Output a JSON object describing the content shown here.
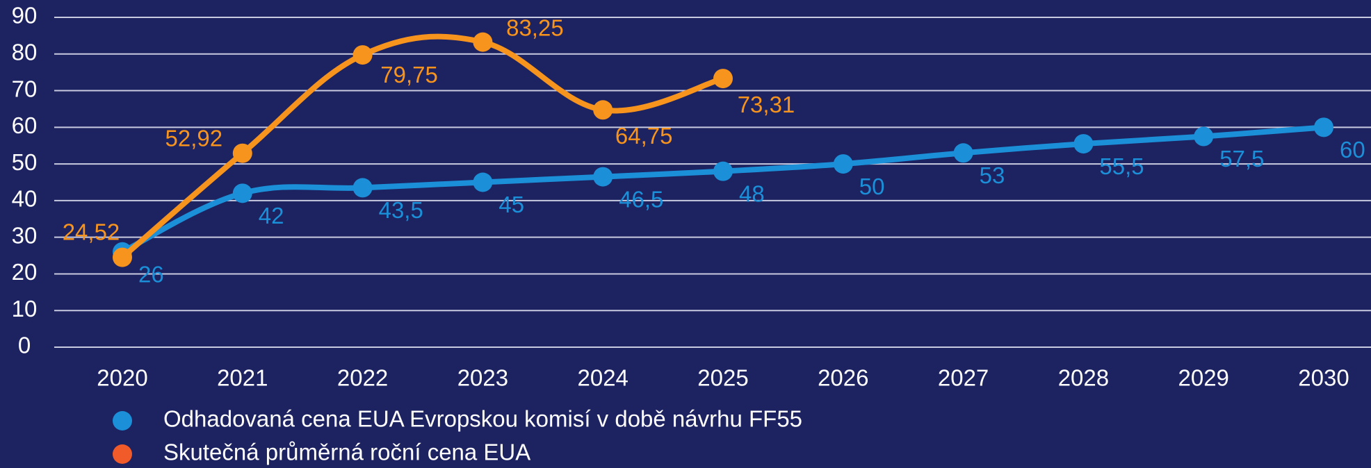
{
  "chart_data": {
    "type": "line",
    "categories": [
      "2020",
      "2021",
      "2022",
      "2023",
      "2024",
      "2025",
      "2026",
      "2027",
      "2028",
      "2029",
      "2030"
    ],
    "series": [
      {
        "name": "Odhadovaná cena EUA Evropskou komisí v době návrhu FF55",
        "color": "#1b8fd8",
        "legend_color": "#1b8fd8",
        "values": [
          26,
          42,
          43.5,
          45,
          46.5,
          48,
          50,
          53,
          55.5,
          57.5,
          60
        ],
        "value_labels": [
          "26",
          "42",
          "43,5",
          "45",
          "46,5",
          "48",
          "50",
          "53",
          "55,5",
          "57,5",
          "60"
        ]
      },
      {
        "name": "Skutečná průměrná roční cena EUA",
        "color": "#f7941d",
        "legend_color": "#f15a29",
        "values": [
          24.52,
          52.92,
          79.75,
          83.25,
          64.75,
          73.31,
          null,
          null,
          null,
          null,
          null
        ],
        "value_labels": [
          "24,52",
          "52,92",
          "79,75",
          "83,25",
          "64,75",
          "73,31",
          null,
          null,
          null,
          null,
          null
        ]
      }
    ],
    "ylim": [
      0,
      90
    ],
    "yticks": [
      0,
      10,
      20,
      30,
      40,
      50,
      60,
      70,
      80,
      90
    ],
    "grid": true
  }
}
